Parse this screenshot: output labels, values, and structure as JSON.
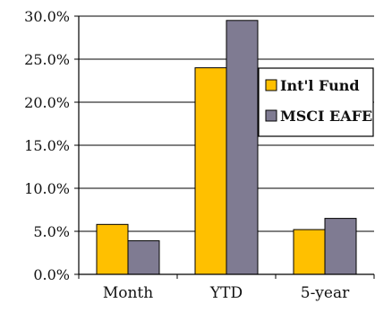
{
  "chart_data": {
    "type": "bar",
    "title": "",
    "xlabel": "",
    "ylabel": "",
    "categories": [
      "Month",
      "YTD",
      "5-year"
    ],
    "series": [
      {
        "name": "Int'l Fund",
        "values": [
          5.8,
          24.0,
          5.2
        ],
        "color": "#FFC000"
      },
      {
        "name": "MSCI EAFE",
        "values": [
          3.9,
          29.5,
          6.5
        ],
        "color": "#7F7B92"
      }
    ],
    "ylim": [
      0,
      30
    ],
    "yticks": [
      0,
      5,
      10,
      15,
      20,
      25,
      30
    ],
    "ytick_labels": [
      "0.0%",
      "5.0%",
      "10.0%",
      "15.0%",
      "20.0%",
      "25.0%",
      "30.0%"
    ],
    "grid": true,
    "legend_position": "right"
  }
}
